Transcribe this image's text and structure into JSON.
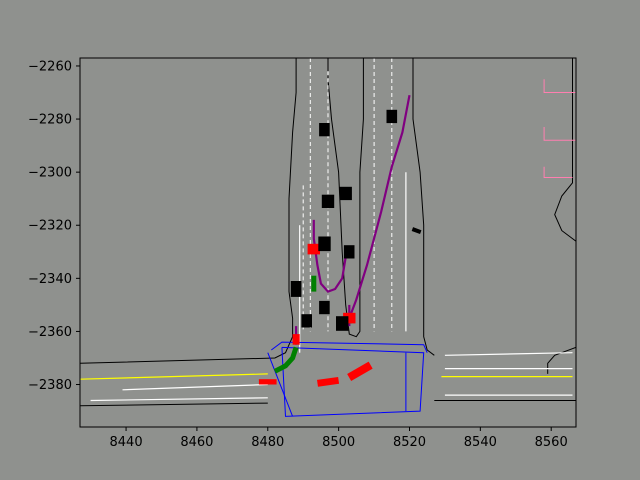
{
  "chart_data": {
    "type": "scatter",
    "title": "",
    "xlabel": "",
    "ylabel": "",
    "xlim": [
      8427,
      8567
    ],
    "ylim": [
      -2396,
      -2257
    ],
    "grid": false,
    "xticks": [
      8440,
      8460,
      8480,
      8500,
      8520,
      8540,
      8560
    ],
    "yticks": [
      -2260,
      -2280,
      -2300,
      -2320,
      -2340,
      -2360,
      -2380
    ],
    "xtick_labels": [
      "8440",
      "8460",
      "8480",
      "8500",
      "8520",
      "8540",
      "8560"
    ],
    "ytick_labels": [
      "−2260",
      "−2280",
      "−2300",
      "−2320",
      "−2340",
      "−2360",
      "−2380"
    ],
    "colors": {
      "background": "#8f918e",
      "road_boundary": "#000000",
      "lane_divider": "#ffffff",
      "center_line": "#ffff00",
      "crosswalk": "#0000ff",
      "crosswalk_marker": "#ff7fb0",
      "ego_history": "#008000",
      "agent_vehicle": "#ff0000",
      "predicted_path": "#800080",
      "parked_vehicle": "#000000"
    },
    "series": [
      {
        "name": "road-boundaries",
        "kind": "polyline",
        "color": "#000000",
        "lines": [
          [
            [
              8427,
              -2372
            ],
            [
              8482,
              -2370
            ],
            [
              8485,
              -2368
            ],
            [
              8487,
              -2362
            ],
            [
              8487,
              -2355
            ],
            [
              8486,
              -2345
            ],
            [
              8486,
              -2310
            ],
            [
              8487,
              -2285
            ],
            [
              8488,
              -2270
            ],
            [
              8488,
              -2257
            ]
          ],
          [
            [
              8427,
              -2388
            ],
            [
              8480,
              -2387
            ]
          ],
          [
            [
              8527,
              -2369
            ],
            [
              8525,
              -2367
            ],
            [
              8524,
              -2362
            ],
            [
              8524,
              -2320
            ],
            [
              8523,
              -2300
            ],
            [
              8521,
              -2280
            ],
            [
              8521,
              -2257
            ]
          ],
          [
            [
              8527,
              -2386
            ],
            [
              8567,
              -2386
            ]
          ],
          [
            [
              8567,
              -2326
            ],
            [
              8563,
              -2322
            ],
            [
              8561,
              -2316
            ],
            [
              8563,
              -2309
            ],
            [
              8566,
              -2304
            ],
            [
              8566,
              -2257
            ]
          ],
          [
            [
              8567,
              -2366
            ],
            [
              8561,
              -2369
            ],
            [
              8559,
              -2372
            ],
            [
              8559,
              -2376
            ]
          ],
          [
            [
              8497,
              -2257
            ],
            [
              8497,
              -2265
            ],
            [
              8498,
              -2280
            ],
            [
              8500,
              -2300
            ],
            [
              8501,
              -2330
            ],
            [
              8502,
              -2350
            ],
            [
              8503,
              -2361
            ],
            [
              8505,
              -2362
            ],
            [
              8506,
              -2360
            ],
            [
              8506,
              -2300
            ],
            [
              8507,
              -2280
            ],
            [
              8507,
              -2265
            ],
            [
              8507,
              -2257
            ]
          ]
        ]
      },
      {
        "name": "lane-dividers",
        "kind": "dashed-polyline",
        "color": "#ffffff",
        "lines": [
          [
            [
              8492,
              -2257
            ],
            [
              8492,
              -2360
            ]
          ],
          [
            [
              8497,
              -2262
            ],
            [
              8497,
              -2360
            ]
          ],
          [
            [
              8510,
              -2257
            ],
            [
              8510,
              -2360
            ]
          ],
          [
            [
              8515,
              -2257
            ],
            [
              8515,
              -2360
            ]
          ],
          [
            [
              8490,
              -2305
            ],
            [
              8490,
              -2360
            ]
          ]
        ]
      },
      {
        "name": "lane-edges",
        "kind": "polyline",
        "color": "#ffffff",
        "lines": [
          [
            [
              8489,
              -2320
            ],
            [
              8489,
              -2368
            ]
          ],
          [
            [
              8519,
              -2300
            ],
            [
              8519,
              -2360
            ]
          ],
          [
            [
              8439,
              -2382
            ],
            [
              8480,
              -2380
            ]
          ],
          [
            [
              8430,
              -2386
            ],
            [
              8480,
              -2385
            ]
          ],
          [
            [
              8530,
              -2374
            ],
            [
              8566,
              -2374
            ]
          ],
          [
            [
              8530,
              -2369
            ],
            [
              8566,
              -2368
            ]
          ],
          [
            [
              8530,
              -2384
            ],
            [
              8566,
              -2384
            ]
          ]
        ]
      },
      {
        "name": "center-lines",
        "kind": "polyline",
        "color": "#ffff00",
        "lines": [
          [
            [
              8427,
              -2378
            ],
            [
              8480,
              -2376
            ]
          ],
          [
            [
              8529,
              -2377
            ],
            [
              8566,
              -2377
            ]
          ]
        ]
      },
      {
        "name": "crosswalks",
        "kind": "polygon",
        "color": "#0000ff",
        "lines": [
          [
            [
              8484,
              -2366
            ],
            [
              8524,
              -2368
            ],
            [
              8523,
              -2390
            ],
            [
              8485,
              -2392
            ],
            [
              8484,
              -2366
            ]
          ],
          [
            [
              8481,
              -2367
            ],
            [
              8484,
              -2364
            ],
            [
              8524,
              -2365
            ],
            [
              8525,
              -2368
            ]
          ],
          [
            [
              8480,
              -2368
            ],
            [
              8487,
              -2392
            ]
          ],
          [
            [
              8519,
              -2368
            ],
            [
              8519,
              -2390
            ]
          ]
        ]
      },
      {
        "name": "crosswalk-markers",
        "kind": "polyline",
        "color": "#ff7fb0",
        "lines": [
          [
            [
              8558,
              -2265
            ],
            [
              8558,
              -2270
            ],
            [
              8567,
              -2270
            ]
          ],
          [
            [
              8558,
              -2283
            ],
            [
              8558,
              -2288
            ],
            [
              8567,
              -2288
            ]
          ],
          [
            [
              8558,
              -2298
            ],
            [
              8558,
              -2302
            ],
            [
              8566,
              -2302
            ]
          ]
        ]
      },
      {
        "name": "predicted-paths",
        "kind": "polyline",
        "color": "#800080",
        "lines": [
          [
            [
              8493,
              -2318
            ],
            [
              8493,
              -2325
            ],
            [
              8494,
              -2335
            ],
            [
              8495,
              -2342
            ],
            [
              8497,
              -2345
            ],
            [
              8499,
              -2344
            ],
            [
              8501,
              -2340
            ],
            [
              8502,
              -2332
            ]
          ],
          [
            [
              8503,
              -2355
            ],
            [
              8505,
              -2348
            ],
            [
              8508,
              -2335
            ],
            [
              8512,
              -2315
            ],
            [
              8515,
              -2298
            ],
            [
              8518,
              -2285
            ],
            [
              8520,
              -2271
            ]
          ],
          [
            [
              8488,
              -2365
            ],
            [
              8488,
              -2358
            ]
          ],
          [
            [
              8503,
              -2358
            ],
            [
              8503,
              -2350
            ]
          ]
        ]
      },
      {
        "name": "ego-history",
        "kind": "thick-polyline",
        "color": "#008000",
        "lines": [
          [
            [
              8482,
              -2375
            ],
            [
              8485,
              -2373
            ],
            [
              8487,
              -2370
            ],
            [
              8488,
              -2366
            ]
          ],
          [
            [
              8493,
              -2339
            ],
            [
              8493,
              -2345
            ]
          ],
          [
            [
              8503,
              -2355
            ],
            [
              8503,
              -2357
            ]
          ]
        ]
      }
    ],
    "vehicles": [
      {
        "name": "agent-red-1",
        "color": "#ff0000",
        "x": 8493,
        "y": -2329,
        "w": 3.5,
        "h": 4,
        "angle": 0
      },
      {
        "name": "agent-red-2",
        "color": "#ff0000",
        "x": 8488,
        "y": -2363,
        "w": 2,
        "h": 4,
        "angle": 0
      },
      {
        "name": "agent-red-3",
        "color": "#ff0000",
        "x": 8503,
        "y": -2355,
        "w": 3.5,
        "h": 4,
        "angle": 0
      },
      {
        "name": "agent-red-4",
        "color": "#ff0000",
        "x": 8480,
        "y": -2379,
        "w": 5,
        "h": 2,
        "angle": 0
      },
      {
        "name": "agent-red-5",
        "color": "#ff0000",
        "x": 8497,
        "y": -2379,
        "w": 6,
        "h": 2.6,
        "angle": -8
      },
      {
        "name": "agent-red-6",
        "color": "#ff0000",
        "x": 8506,
        "y": -2375,
        "w": 7,
        "h": 3,
        "angle": -30
      },
      {
        "name": "parked-1",
        "color": "#000000",
        "x": 8496,
        "y": -2284,
        "w": 3,
        "h": 5,
        "angle": 0
      },
      {
        "name": "parked-2",
        "color": "#000000",
        "x": 8515,
        "y": -2279,
        "w": 3,
        "h": 5,
        "angle": 0
      },
      {
        "name": "parked-3",
        "color": "#000000",
        "x": 8502,
        "y": -2308,
        "w": 3.5,
        "h": 5,
        "angle": 0
      },
      {
        "name": "parked-4",
        "color": "#000000",
        "x": 8497,
        "y": -2311,
        "w": 3.5,
        "h": 5,
        "angle": 0
      },
      {
        "name": "parked-5",
        "color": "#000000",
        "x": 8496,
        "y": -2327,
        "w": 3.5,
        "h": 5.5,
        "angle": 0
      },
      {
        "name": "parked-6",
        "color": "#000000",
        "x": 8503,
        "y": -2330,
        "w": 3,
        "h": 5,
        "angle": 0
      },
      {
        "name": "parked-7",
        "color": "#000000",
        "x": 8488,
        "y": -2344,
        "w": 3,
        "h": 6,
        "angle": 0
      },
      {
        "name": "parked-8",
        "color": "#000000",
        "x": 8496,
        "y": -2351,
        "w": 3,
        "h": 5,
        "angle": 0
      },
      {
        "name": "parked-9",
        "color": "#000000",
        "x": 8491,
        "y": -2356,
        "w": 3,
        "h": 5,
        "angle": 0
      },
      {
        "name": "parked-10",
        "color": "#000000",
        "x": 8501,
        "y": -2357,
        "w": 3.5,
        "h": 5.5,
        "angle": 0
      },
      {
        "name": "parked-11",
        "color": "#000000",
        "x": 8522,
        "y": -2322,
        "w": 2.5,
        "h": 1.5,
        "angle": 20
      }
    ]
  }
}
